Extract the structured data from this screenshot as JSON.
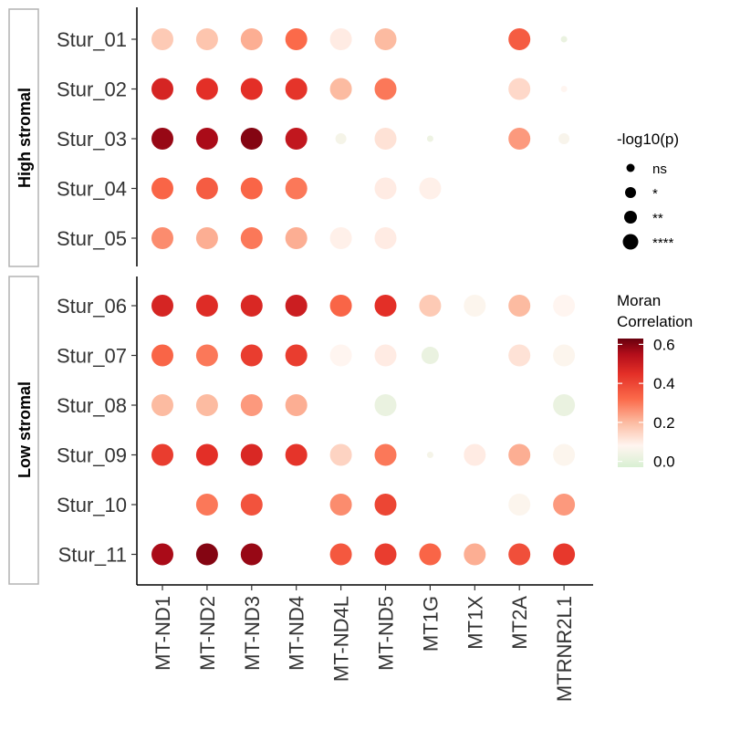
{
  "chart_data": {
    "type": "dot",
    "genes": [
      "MT-ND1",
      "MT-ND2",
      "MT-ND3",
      "MT-ND4",
      "MT-ND4L",
      "MT-ND5",
      "MT1G",
      "MT1X",
      "MT2A",
      "MTRNR2L1"
    ],
    "facets": [
      {
        "name": "High stromal",
        "samples": [
          "Stur_01",
          "Stur_02",
          "Stur_03",
          "Stur_04",
          "Stur_05"
        ],
        "points": [
          {
            "sample": "Stur_01",
            "gene": "MT-ND1",
            "correlation": 0.17,
            "significance": "****"
          },
          {
            "sample": "Stur_01",
            "gene": "MT-ND2",
            "correlation": 0.18,
            "significance": "****"
          },
          {
            "sample": "Stur_01",
            "gene": "MT-ND3",
            "correlation": 0.22,
            "significance": "****"
          },
          {
            "sample": "Stur_01",
            "gene": "MT-ND4",
            "correlation": 0.32,
            "significance": "****"
          },
          {
            "sample": "Stur_01",
            "gene": "MT-ND4L",
            "correlation": 0.1,
            "significance": "****"
          },
          {
            "sample": "Stur_01",
            "gene": "MT-ND5",
            "correlation": 0.2,
            "significance": "****"
          },
          {
            "sample": "Stur_01",
            "gene": "MT2A",
            "correlation": 0.35,
            "significance": "****"
          },
          {
            "sample": "Stur_01",
            "gene": "MTRNR2L1",
            "correlation": 0.02,
            "significance": "ns"
          },
          {
            "sample": "Stur_02",
            "gene": "MT-ND1",
            "correlation": 0.48,
            "significance": "****"
          },
          {
            "sample": "Stur_02",
            "gene": "MT-ND2",
            "correlation": 0.45,
            "significance": "****"
          },
          {
            "sample": "Stur_02",
            "gene": "MT-ND3",
            "correlation": 0.45,
            "significance": "****"
          },
          {
            "sample": "Stur_02",
            "gene": "MT-ND4",
            "correlation": 0.44,
            "significance": "****"
          },
          {
            "sample": "Stur_02",
            "gene": "MT-ND4L",
            "correlation": 0.2,
            "significance": "****"
          },
          {
            "sample": "Stur_02",
            "gene": "MT-ND5",
            "correlation": 0.3,
            "significance": "****"
          },
          {
            "sample": "Stur_02",
            "gene": "MT2A",
            "correlation": 0.14,
            "significance": "****"
          },
          {
            "sample": "Stur_02",
            "gene": "MTRNR2L1",
            "correlation": 0.08,
            "significance": "ns"
          },
          {
            "sample": "Stur_03",
            "gene": "MT-ND1",
            "correlation": 0.58,
            "significance": "****"
          },
          {
            "sample": "Stur_03",
            "gene": "MT-ND2",
            "correlation": 0.56,
            "significance": "****"
          },
          {
            "sample": "Stur_03",
            "gene": "MT-ND3",
            "correlation": 0.6,
            "significance": "****"
          },
          {
            "sample": "Stur_03",
            "gene": "MT-ND4",
            "correlation": 0.52,
            "significance": "****"
          },
          {
            "sample": "Stur_03",
            "gene": "MT-ND4L",
            "correlation": 0.05,
            "significance": "*"
          },
          {
            "sample": "Stur_03",
            "gene": "MT-ND5",
            "correlation": 0.12,
            "significance": "****"
          },
          {
            "sample": "Stur_03",
            "gene": "MT1G",
            "correlation": 0.03,
            "significance": "ns"
          },
          {
            "sample": "Stur_03",
            "gene": "MT2A",
            "correlation": 0.25,
            "significance": "****"
          },
          {
            "sample": "Stur_03",
            "gene": "MTRNR2L1",
            "correlation": 0.06,
            "significance": "*"
          },
          {
            "sample": "Stur_04",
            "gene": "MT-ND1",
            "correlation": 0.33,
            "significance": "****"
          },
          {
            "sample": "Stur_04",
            "gene": "MT-ND2",
            "correlation": 0.35,
            "significance": "****"
          },
          {
            "sample": "Stur_04",
            "gene": "MT-ND3",
            "correlation": 0.33,
            "significance": "****"
          },
          {
            "sample": "Stur_04",
            "gene": "MT-ND4",
            "correlation": 0.3,
            "significance": "****"
          },
          {
            "sample": "Stur_04",
            "gene": "MT-ND5",
            "correlation": 0.1,
            "significance": "****"
          },
          {
            "sample": "Stur_04",
            "gene": "MT1G",
            "correlation": 0.09,
            "significance": "****"
          },
          {
            "sample": "Stur_05",
            "gene": "MT-ND1",
            "correlation": 0.27,
            "significance": "****"
          },
          {
            "sample": "Stur_05",
            "gene": "MT-ND2",
            "correlation": 0.22,
            "significance": "****"
          },
          {
            "sample": "Stur_05",
            "gene": "MT-ND3",
            "correlation": 0.3,
            "significance": "****"
          },
          {
            "sample": "Stur_05",
            "gene": "MT-ND4",
            "correlation": 0.22,
            "significance": "****"
          },
          {
            "sample": "Stur_05",
            "gene": "MT-ND4L",
            "correlation": 0.09,
            "significance": "****"
          },
          {
            "sample": "Stur_05",
            "gene": "MT-ND5",
            "correlation": 0.1,
            "significance": "****"
          }
        ]
      },
      {
        "name": "Low stromal",
        "samples": [
          "Stur_06",
          "Stur_07",
          "Stur_08",
          "Stur_09",
          "Stur_10",
          "Stur_11"
        ],
        "points": [
          {
            "sample": "Stur_06",
            "gene": "MT-ND1",
            "correlation": 0.48,
            "significance": "****"
          },
          {
            "sample": "Stur_06",
            "gene": "MT-ND2",
            "correlation": 0.46,
            "significance": "****"
          },
          {
            "sample": "Stur_06",
            "gene": "MT-ND3",
            "correlation": 0.47,
            "significance": "****"
          },
          {
            "sample": "Stur_06",
            "gene": "MT-ND4",
            "correlation": 0.5,
            "significance": "****"
          },
          {
            "sample": "Stur_06",
            "gene": "MT-ND4L",
            "correlation": 0.33,
            "significance": "****"
          },
          {
            "sample": "Stur_06",
            "gene": "MT-ND5",
            "correlation": 0.45,
            "significance": "****"
          },
          {
            "sample": "Stur_06",
            "gene": "MT1G",
            "correlation": 0.17,
            "significance": "****"
          },
          {
            "sample": "Stur_06",
            "gene": "MT1X",
            "correlation": 0.07,
            "significance": "****"
          },
          {
            "sample": "Stur_06",
            "gene": "MT2A",
            "correlation": 0.2,
            "significance": "****"
          },
          {
            "sample": "Stur_06",
            "gene": "MTRNR2L1",
            "correlation": 0.08,
            "significance": "****"
          },
          {
            "sample": "Stur_07",
            "gene": "MT-ND1",
            "correlation": 0.33,
            "significance": "****"
          },
          {
            "sample": "Stur_07",
            "gene": "MT-ND2",
            "correlation": 0.3,
            "significance": "****"
          },
          {
            "sample": "Stur_07",
            "gene": "MT-ND3",
            "correlation": 0.42,
            "significance": "****"
          },
          {
            "sample": "Stur_07",
            "gene": "MT-ND4",
            "correlation": 0.42,
            "significance": "****"
          },
          {
            "sample": "Stur_07",
            "gene": "MT-ND4L",
            "correlation": 0.08,
            "significance": "****"
          },
          {
            "sample": "Stur_07",
            "gene": "MT-ND5",
            "correlation": 0.1,
            "significance": "****"
          },
          {
            "sample": "Stur_07",
            "gene": "MT1G",
            "correlation": 0.02,
            "significance": "***"
          },
          {
            "sample": "Stur_07",
            "gene": "MT2A",
            "correlation": 0.12,
            "significance": "****"
          },
          {
            "sample": "Stur_07",
            "gene": "MTRNR2L1",
            "correlation": 0.07,
            "significance": "****"
          },
          {
            "sample": "Stur_08",
            "gene": "MT-ND1",
            "correlation": 0.2,
            "significance": "****"
          },
          {
            "sample": "Stur_08",
            "gene": "MT-ND2",
            "correlation": 0.2,
            "significance": "****"
          },
          {
            "sample": "Stur_08",
            "gene": "MT-ND3",
            "correlation": 0.25,
            "significance": "****"
          },
          {
            "sample": "Stur_08",
            "gene": "MT-ND4",
            "correlation": 0.22,
            "significance": "****"
          },
          {
            "sample": "Stur_08",
            "gene": "MT-ND5",
            "correlation": 0.02,
            "significance": "****"
          },
          {
            "sample": "Stur_08",
            "gene": "MTRNR2L1",
            "correlation": 0.02,
            "significance": "****"
          },
          {
            "sample": "Stur_09",
            "gene": "MT-ND1",
            "correlation": 0.42,
            "significance": "****"
          },
          {
            "sample": "Stur_09",
            "gene": "MT-ND2",
            "correlation": 0.45,
            "significance": "****"
          },
          {
            "sample": "Stur_09",
            "gene": "MT-ND3",
            "correlation": 0.47,
            "significance": "****"
          },
          {
            "sample": "Stur_09",
            "gene": "MT-ND4",
            "correlation": 0.44,
            "significance": "****"
          },
          {
            "sample": "Stur_09",
            "gene": "MT-ND4L",
            "correlation": 0.15,
            "significance": "****"
          },
          {
            "sample": "Stur_09",
            "gene": "MT-ND5",
            "correlation": 0.3,
            "significance": "****"
          },
          {
            "sample": "Stur_09",
            "gene": "MT1G",
            "correlation": 0.05,
            "significance": "ns"
          },
          {
            "sample": "Stur_09",
            "gene": "MT1X",
            "correlation": 0.1,
            "significance": "****"
          },
          {
            "sample": "Stur_09",
            "gene": "MT2A",
            "correlation": 0.22,
            "significance": "****"
          },
          {
            "sample": "Stur_09",
            "gene": "MTRNR2L1",
            "correlation": 0.07,
            "significance": "****"
          },
          {
            "sample": "Stur_10",
            "gene": "MT-ND2",
            "correlation": 0.3,
            "significance": "****"
          },
          {
            "sample": "Stur_10",
            "gene": "MT-ND3",
            "correlation": 0.37,
            "significance": "****"
          },
          {
            "sample": "Stur_10",
            "gene": "MT-ND4L",
            "correlation": 0.27,
            "significance": "****"
          },
          {
            "sample": "Stur_10",
            "gene": "MT-ND5",
            "correlation": 0.4,
            "significance": "****"
          },
          {
            "sample": "Stur_10",
            "gene": "MT2A",
            "correlation": 0.07,
            "significance": "****"
          },
          {
            "sample": "Stur_10",
            "gene": "MTRNR2L1",
            "correlation": 0.25,
            "significance": "****"
          },
          {
            "sample": "Stur_11",
            "gene": "MT-ND1",
            "correlation": 0.56,
            "significance": "****"
          },
          {
            "sample": "Stur_11",
            "gene": "MT-ND2",
            "correlation": 0.6,
            "significance": "****"
          },
          {
            "sample": "Stur_11",
            "gene": "MT-ND3",
            "correlation": 0.58,
            "significance": "****"
          },
          {
            "sample": "Stur_11",
            "gene": "MT-ND4L",
            "correlation": 0.36,
            "significance": "****"
          },
          {
            "sample": "Stur_11",
            "gene": "MT-ND5",
            "correlation": 0.42,
            "significance": "****"
          },
          {
            "sample": "Stur_11",
            "gene": "MT1G",
            "correlation": 0.33,
            "significance": "****"
          },
          {
            "sample": "Stur_11",
            "gene": "MT1X",
            "correlation": 0.22,
            "significance": "****"
          },
          {
            "sample": "Stur_11",
            "gene": "MT2A",
            "correlation": 0.38,
            "significance": "****"
          },
          {
            "sample": "Stur_11",
            "gene": "MTRNR2L1",
            "correlation": 0.43,
            "significance": "****"
          }
        ]
      }
    ],
    "size_legend": {
      "title": "-log10(p)",
      "levels": [
        "ns",
        "*",
        "**",
        "****"
      ]
    },
    "color_legend": {
      "title_line1": "Moran",
      "title_line2": "Correlation",
      "ticks": [
        0.0,
        0.2,
        0.4,
        0.6
      ],
      "tick_labels": [
        "0.0",
        "0.2",
        "0.4",
        "0.6"
      ],
      "range": [
        -0.03,
        0.63
      ],
      "gradient": [
        {
          "value": -0.03,
          "color": "#d9f0d3"
        },
        {
          "value": 0.08,
          "color": "#fff5f0"
        },
        {
          "value": 0.2,
          "color": "#fcbba1"
        },
        {
          "value": 0.32,
          "color": "#fb6a4a"
        },
        {
          "value": 0.45,
          "color": "#e32f27"
        },
        {
          "value": 0.55,
          "color": "#b30d1a"
        },
        {
          "value": 0.63,
          "color": "#67000d"
        }
      ]
    }
  }
}
